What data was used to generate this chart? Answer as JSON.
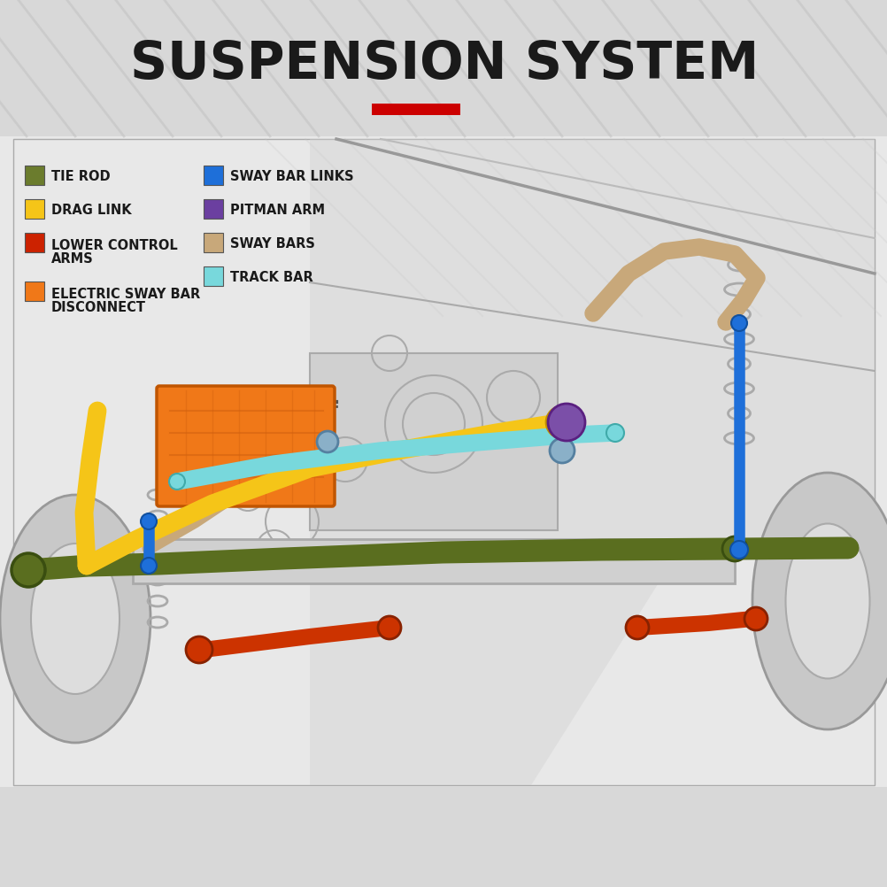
{
  "title": "SUSPENSION SYSTEM",
  "title_fontsize": 42,
  "title_color": "#1a1a1a",
  "background_top": "#dcdcdc",
  "background_bottom": "#e8e8e8",
  "red_bar_color": "#cc0000",
  "diagram_bg": "#e8e8e8",
  "legend_items_left": [
    {
      "label": "TIE ROD",
      "color": "#6b7c2d",
      "multiline": false
    },
    {
      "label": "DRAG LINK",
      "color": "#f5c518",
      "multiline": false
    },
    {
      "label": "LOWER CONTROL\nARMS",
      "color": "#cc2200",
      "multiline": true
    },
    {
      "label": "ELECTRIC SWAY BAR\nDISCONNECT",
      "color": "#f07818",
      "multiline": true
    }
  ],
  "legend_items_right": [
    {
      "label": "SWAY BAR LINKS",
      "color": "#1e6fd9",
      "multiline": false
    },
    {
      "label": "PITMAN ARM",
      "color": "#6b3fa0",
      "multiline": false
    },
    {
      "label": "SWAY BARS",
      "color": "#c8a87a",
      "multiline": false
    },
    {
      "label": "TRACK BAR",
      "color": "#78d8dc",
      "multiline": false
    }
  ],
  "colors": {
    "tie_rod": "#5a6e1f",
    "drag_link": "#f5c518",
    "track_bar": "#78d8dc",
    "sway_bar_links": "#1e6fd9",
    "pitman_arm": "#7b4fa8",
    "sway_bars": "#c8a87a",
    "lower_control_arms": "#cc3300",
    "electric_sway_bar": "#f07818",
    "vehicle_outline": "#b0b0b0",
    "vehicle_fill": "#d8d8d8",
    "diagram_bg": "#e0e0e0"
  },
  "diag_stripe_color": "#c8c8c8",
  "diag_stripe_alpha": 0.35
}
